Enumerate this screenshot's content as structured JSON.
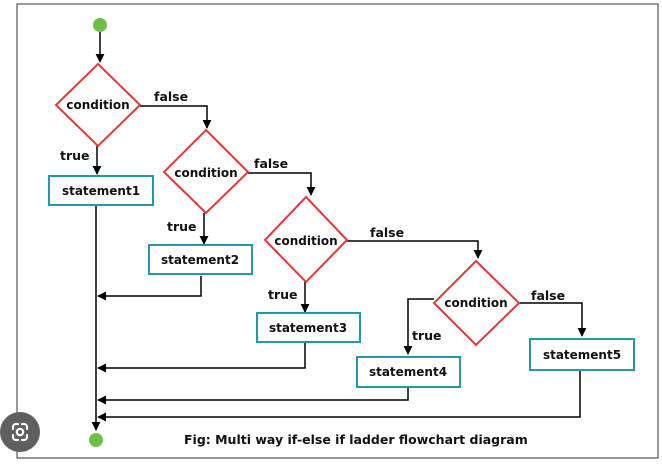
{
  "diagram": {
    "decisions": [
      {
        "id": "d1",
        "label": "condition"
      },
      {
        "id": "d2",
        "label": "condition"
      },
      {
        "id": "d3",
        "label": "condition"
      },
      {
        "id": "d4",
        "label": "condition"
      }
    ],
    "statements": [
      {
        "id": "s1",
        "label": "statement1"
      },
      {
        "id": "s2",
        "label": "statement2"
      },
      {
        "id": "s3",
        "label": "statement3"
      },
      {
        "id": "s4",
        "label": "statement4"
      },
      {
        "id": "s5",
        "label": "statement5"
      }
    ],
    "edge_labels": {
      "true": "true",
      "false": "false"
    },
    "caption": "Fig: Multi way if-else if ladder flowchart diagram"
  },
  "colors": {
    "decision_border": "#e53935",
    "statement_border": "#1e9ba6",
    "terminal": "#6cc04a",
    "line": "#000000",
    "frame": "#555555"
  },
  "overlay": {
    "icon": "google-lens-icon"
  }
}
